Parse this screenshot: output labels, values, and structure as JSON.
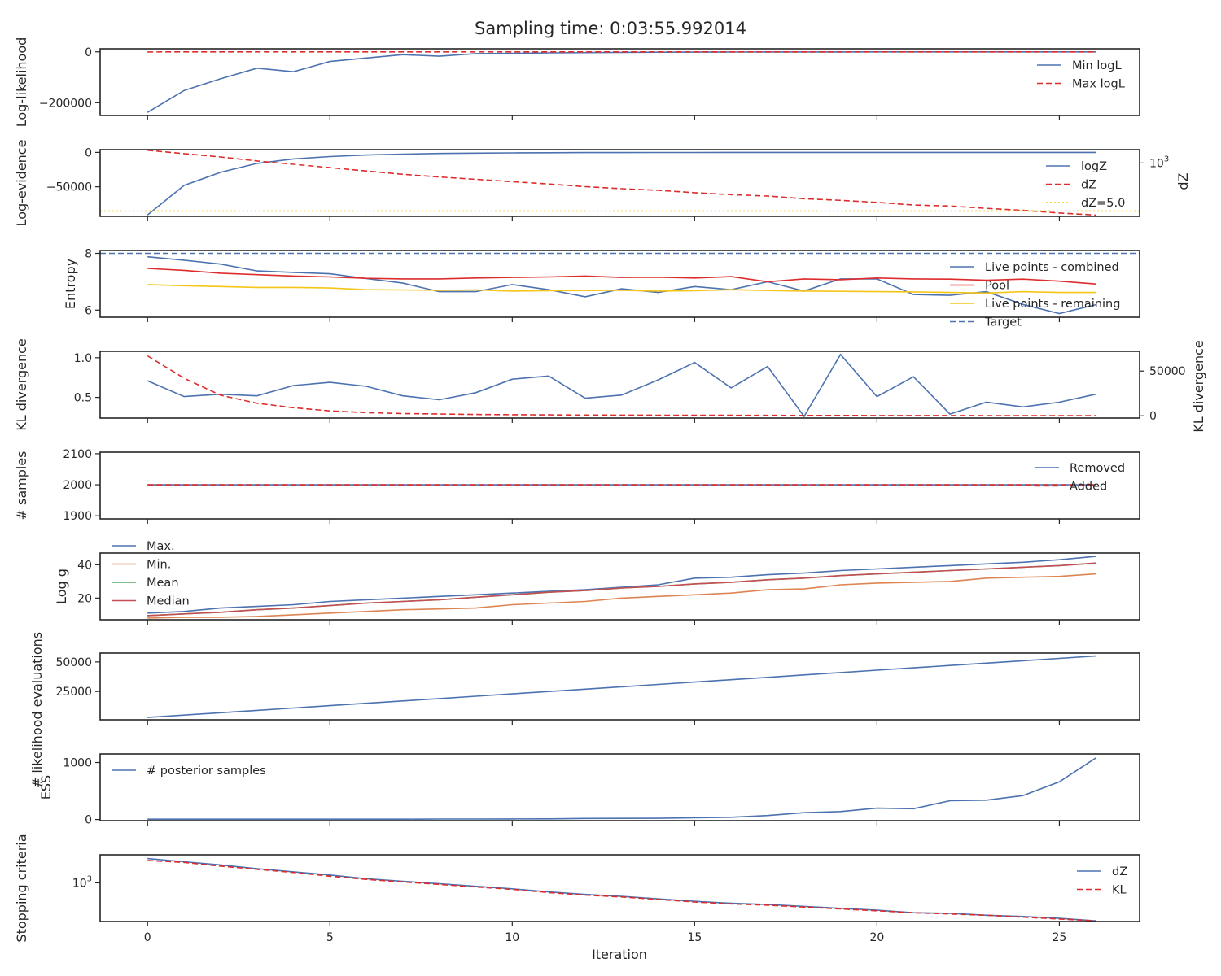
{
  "title": "Sampling time: 0:03:55.992014",
  "xlabel": "Iteration",
  "x_ticks": [
    0,
    5,
    10,
    15,
    20,
    25
  ],
  "xlim": [
    -1.3,
    27.2
  ],
  "colors": {
    "blue": "#4c72b0",
    "red": "#dd2c2c",
    "orange": "#dd8452",
    "green": "#55a868",
    "median": "#c44e52",
    "yellow": "#f5c518"
  },
  "chart_data": [
    {
      "type": "line",
      "ylabel": "Log-likelihood",
      "ylim": [
        -250000,
        12000
      ],
      "yticks": [
        {
          "v": 0,
          "label": "0"
        },
        {
          "v": -200000,
          "label": "−200000"
        }
      ],
      "legend_loc": "right",
      "series": [
        {
          "name": "Min logL",
          "color": "blue",
          "dash": "solid",
          "values": [
            -238000,
            -152000,
            -106000,
            -64000,
            -78000,
            -38000,
            -24000,
            -11000,
            -17000,
            -7000,
            -6000,
            -4000,
            -3000,
            -2000,
            -1500,
            -1000,
            -800,
            -600,
            -500,
            -400,
            -300,
            -250,
            -200,
            -150,
            -100,
            -80,
            -50
          ]
        },
        {
          "name": "Max logL",
          "color": "red",
          "dash": "dashed",
          "values": [
            -500,
            -300,
            -200,
            -150,
            -120,
            -100,
            -90,
            -80,
            -70,
            -60,
            -50,
            -45,
            -40,
            -35,
            -30,
            -25,
            -20,
            -18,
            -16,
            -14,
            -12,
            -10,
            -8,
            -6,
            -5,
            -4,
            -3
          ]
        }
      ]
    },
    {
      "type": "line",
      "ylabel": "Log-evidence",
      "ylabel_right": "dZ",
      "ylim": [
        -93000,
        4000
      ],
      "yticks": [
        {
          "v": 0,
          "label": "0"
        },
        {
          "v": -50000,
          "label": "−50000"
        }
      ],
      "y2ticks": [
        {
          "v": 0.8,
          "base": "10",
          "exp": "3"
        }
      ],
      "legend_loc": "right",
      "series": [
        {
          "name": "logZ",
          "color": "blue",
          "dash": "solid",
          "values": [
            -91000,
            -48000,
            -29000,
            -16000,
            -9500,
            -6000,
            -3800,
            -2500,
            -1600,
            -1100,
            -700,
            -450,
            -300,
            -200,
            -140,
            -100,
            -70,
            -50,
            -35,
            -25,
            -18,
            -12,
            -9,
            -6,
            -4,
            -3,
            -2
          ]
        },
        {
          "name": "dZ",
          "color": "red",
          "dash": "dashed",
          "axis": "right",
          "values": [
            0.99,
            0.94,
            0.89,
            0.83,
            0.78,
            0.73,
            0.68,
            0.63,
            0.59,
            0.555,
            0.52,
            0.485,
            0.445,
            0.415,
            0.39,
            0.355,
            0.325,
            0.305,
            0.265,
            0.24,
            0.21,
            0.17,
            0.155,
            0.12,
            0.09,
            0.05,
            0.02
          ]
        },
        {
          "name": "dZ=5.0",
          "color": "yellow",
          "dash": "dotted",
          "axis": "right",
          "hline": 0.08
        }
      ]
    },
    {
      "type": "line",
      "ylabel": "Entropy",
      "ylim": [
        5.75,
        8.1
      ],
      "yticks": [
        {
          "v": 8,
          "label": "8"
        },
        {
          "v": 6,
          "label": "6"
        }
      ],
      "legend_loc": "right",
      "series": [
        {
          "name": "Live points - combined",
          "color": "blue",
          "dash": "solid",
          "values": [
            7.88,
            7.76,
            7.62,
            7.38,
            7.33,
            7.28,
            7.11,
            6.95,
            6.65,
            6.65,
            6.9,
            6.72,
            6.47,
            6.75,
            6.62,
            6.83,
            6.72,
            7.0,
            6.67,
            7.1,
            7.1,
            6.55,
            6.52,
            6.65,
            6.2,
            5.88,
            6.19
          ]
        },
        {
          "name": "Pool",
          "color": "red",
          "dash": "solid",
          "values": [
            7.47,
            7.4,
            7.3,
            7.25,
            7.2,
            7.17,
            7.12,
            7.1,
            7.1,
            7.13,
            7.15,
            7.17,
            7.2,
            7.15,
            7.16,
            7.13,
            7.18,
            7.0,
            7.1,
            7.07,
            7.13,
            7.1,
            7.09,
            7.05,
            7.09,
            7.02,
            6.92
          ]
        },
        {
          "name": "Live points - remaining",
          "color": "yellow",
          "dash": "solid",
          "values": [
            6.9,
            6.86,
            6.83,
            6.8,
            6.8,
            6.78,
            6.72,
            6.71,
            6.7,
            6.71,
            6.67,
            6.68,
            6.69,
            6.7,
            6.67,
            6.68,
            6.72,
            6.69,
            6.67,
            6.66,
            6.65,
            6.64,
            6.62,
            6.6,
            6.65,
            6.62,
            6.62
          ]
        },
        {
          "name": "Target",
          "color": "blue",
          "dash": "dashed",
          "hline": 8
        }
      ]
    },
    {
      "type": "line",
      "ylabel": "KL divergence",
      "ylabel_right": "KL divergence",
      "ylim": [
        0.24,
        1.08
      ],
      "y2lim": [
        -2500,
        72000
      ],
      "yticks": [
        {
          "v": 1.0,
          "label": "1.0"
        },
        {
          "v": 0.5,
          "label": "0.5"
        }
      ],
      "y2ticks": [
        {
          "v": 50000,
          "label": "50000"
        },
        {
          "v": 0,
          "label": "0"
        }
      ],
      "series": [
        {
          "color": "blue",
          "dash": "solid",
          "values": [
            0.71,
            0.51,
            0.54,
            0.52,
            0.65,
            0.69,
            0.64,
            0.52,
            0.47,
            0.56,
            0.73,
            0.77,
            0.49,
            0.53,
            0.72,
            0.94,
            0.62,
            0.89,
            0.26,
            1.04,
            0.51,
            0.76,
            0.29,
            0.44,
            0.38,
            0.44,
            0.54
          ]
        },
        {
          "color": "red",
          "dash": "dashed",
          "axis": "right",
          "values": [
            67000,
            42000,
            23000,
            14000,
            9000,
            5500,
            3500,
            2500,
            2000,
            1500,
            1200,
            1000,
            900,
            800,
            700,
            600,
            550,
            500,
            450,
            400,
            350,
            300,
            280,
            260,
            240,
            220,
            200
          ]
        }
      ]
    },
    {
      "type": "line",
      "ylabel": "# samples",
      "ylim": [
        1890,
        2105
      ],
      "yticks": [
        {
          "v": 2100,
          "label": "2100"
        },
        {
          "v": 2000,
          "label": "2000"
        },
        {
          "v": 1900,
          "label": "1900"
        }
      ],
      "legend_loc": "right",
      "series": [
        {
          "name": "Removed",
          "color": "blue",
          "dash": "solid",
          "constant": 2000
        },
        {
          "name": "Added",
          "color": "red",
          "dash": "dashed",
          "constant": 2000
        }
      ]
    },
    {
      "type": "line",
      "ylabel": "Log g",
      "ylim": [
        7,
        47
      ],
      "yticks": [
        {
          "v": 40,
          "label": "40"
        },
        {
          "v": 20,
          "label": "20"
        }
      ],
      "legend_loc": "left-overflow",
      "series": [
        {
          "name": "Max.",
          "color": "blue",
          "dash": "solid",
          "values": [
            11,
            12,
            14,
            15,
            16,
            18,
            19,
            20,
            21,
            22,
            23,
            24,
            25,
            26.5,
            28,
            32,
            32.5,
            34,
            35,
            36.5,
            37.5,
            38.5,
            39.5,
            40.5,
            41.5,
            43,
            45
          ]
        },
        {
          "name": "Min.",
          "color": "orange",
          "dash": "solid",
          "values": [
            8,
            8.5,
            8.5,
            9,
            10,
            11,
            12,
            13,
            13.5,
            14,
            16,
            17,
            18,
            20,
            21,
            22,
            23,
            25,
            25.5,
            28,
            29,
            29.5,
            30,
            32,
            32.5,
            33,
            34.5
          ]
        },
        {
          "name": "Mean",
          "color": "green",
          "dash": "solid",
          "values": [
            9.5,
            10.5,
            11.5,
            13,
            14,
            15.5,
            17,
            18,
            19,
            20.5,
            22,
            23.5,
            24.5,
            26,
            27,
            28.5,
            29.5,
            31,
            32,
            33.5,
            34.5,
            35.5,
            36.5,
            37.5,
            38.5,
            39.5,
            41
          ]
        },
        {
          "name": "Median",
          "color": "median",
          "dash": "solid",
          "values": [
            9.5,
            10.5,
            11.5,
            13,
            14,
            15.5,
            17,
            18,
            19,
            20.5,
            22,
            23.5,
            24.5,
            26,
            27,
            28.5,
            29.5,
            31,
            32,
            33.5,
            34.5,
            35.5,
            36.5,
            37.5,
            38.5,
            39.5,
            41
          ]
        }
      ]
    },
    {
      "type": "line",
      "ylabel": "# likelihood evaluations",
      "ylim": [
        1000,
        57500
      ],
      "yticks": [
        {
          "v": 50000,
          "label": "50000"
        },
        {
          "v": 25000,
          "label": "25000"
        }
      ],
      "series": [
        {
          "color": "blue",
          "dash": "solid",
          "values": [
            3000,
            5000,
            7000,
            9000,
            11000,
            13000,
            15000,
            17000,
            19000,
            21000,
            23000,
            25000,
            27000,
            29000,
            31000,
            33000,
            35000,
            37000,
            39000,
            41000,
            43000,
            45000,
            47000,
            49000,
            51000,
            53000,
            55000
          ]
        }
      ]
    },
    {
      "type": "line",
      "ylabel": "ESS",
      "ylim": [
        -20,
        1150
      ],
      "yticks": [
        {
          "v": 1000,
          "label": "1000"
        },
        {
          "v": 0,
          "label": "0"
        }
      ],
      "legend_loc": "left",
      "series": [
        {
          "name": "# posterior samples",
          "color": "blue",
          "dash": "solid",
          "values": [
            5,
            5,
            5,
            5,
            5,
            5,
            5,
            6,
            8,
            8,
            10,
            12,
            18,
            20,
            22,
            30,
            40,
            70,
            120,
            140,
            200,
            190,
            330,
            340,
            420,
            660,
            1080
          ]
        }
      ]
    },
    {
      "type": "line",
      "ylabel": "Stopping criteria",
      "ylim": [
        0,
        1.06
      ],
      "yticks": [
        {
          "v": 0.58,
          "base": "10",
          "exp": "3"
        }
      ],
      "legend_loc": "right",
      "series": [
        {
          "name": "dZ",
          "color": "blue",
          "dash": "solid",
          "values": [
            1.0,
            0.95,
            0.9,
            0.84,
            0.79,
            0.74,
            0.68,
            0.64,
            0.6,
            0.56,
            0.52,
            0.47,
            0.43,
            0.4,
            0.36,
            0.32,
            0.29,
            0.27,
            0.24,
            0.21,
            0.18,
            0.14,
            0.13,
            0.1,
            0.08,
            0.05,
            0.01
          ]
        },
        {
          "name": "KL",
          "color": "red",
          "dash": "dashed",
          "values": [
            0.97,
            0.94,
            0.88,
            0.83,
            0.78,
            0.72,
            0.67,
            0.63,
            0.59,
            0.55,
            0.51,
            0.46,
            0.42,
            0.39,
            0.35,
            0.31,
            0.28,
            0.26,
            0.23,
            0.2,
            0.17,
            0.14,
            0.12,
            0.1,
            0.07,
            0.04,
            0.01
          ]
        }
      ]
    }
  ]
}
